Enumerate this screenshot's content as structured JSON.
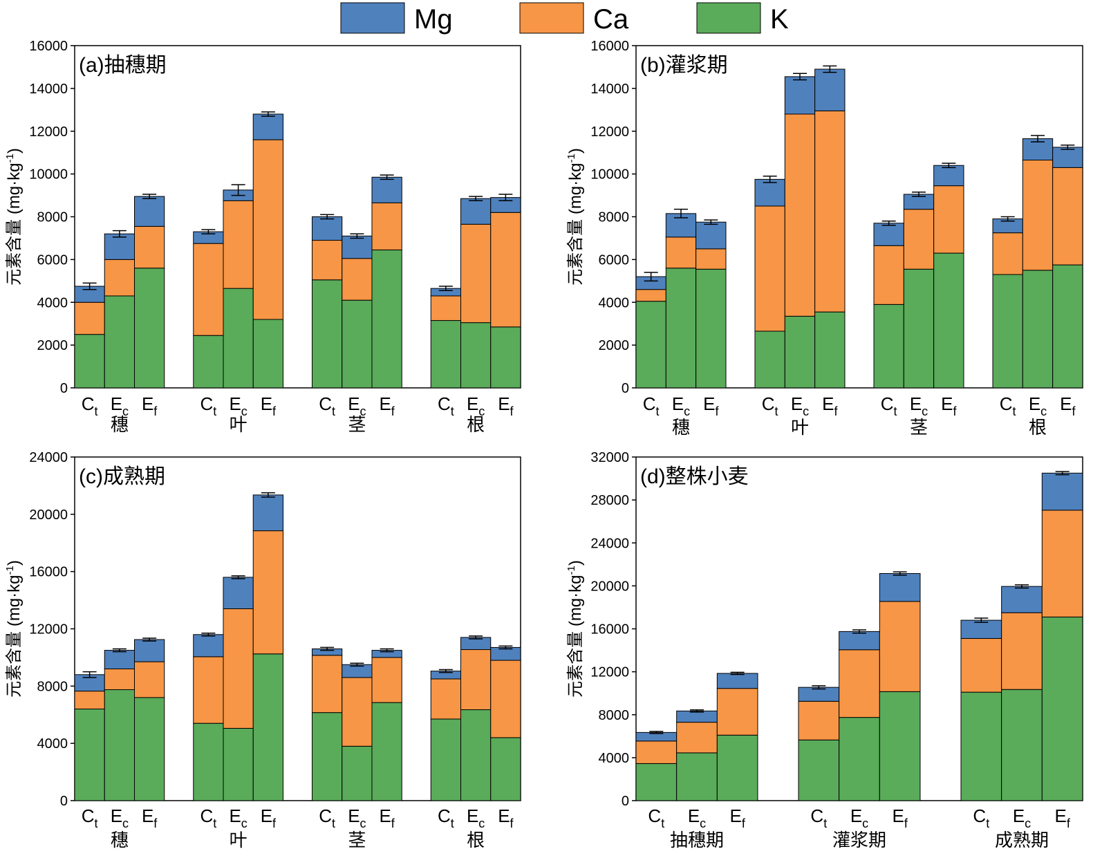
{
  "legend": [
    {
      "name": "Mg",
      "color": "#4f81bd"
    },
    {
      "name": "Ca",
      "color": "#f79646"
    },
    {
      "name": "K",
      "color": "#5aab5a"
    }
  ],
  "chart_data": [
    {
      "type": "bar",
      "stacked": true,
      "title": "(a)抽穗期",
      "ylabel": "元素含量 (mg·kg-1)",
      "ylim": [
        0,
        16000
      ],
      "yticks": [
        0,
        2000,
        4000,
        6000,
        8000,
        10000,
        12000,
        14000,
        16000
      ],
      "groups": [
        "穗",
        "叶",
        "茎",
        "根"
      ],
      "categories": [
        {
          "base": "C",
          "sub": "t"
        },
        {
          "base": "E",
          "sub": "c"
        },
        {
          "base": "E",
          "sub": "f"
        }
      ],
      "series": [
        {
          "name": "K",
          "values": [
            [
              2500,
              4300,
              5600
            ],
            [
              2450,
              4650,
              3200
            ],
            [
              5050,
              4100,
              6450
            ],
            [
              3150,
              3050,
              2850
            ]
          ]
        },
        {
          "name": "Ca",
          "values": [
            [
              1500,
              1700,
              1950
            ],
            [
              4300,
              4100,
              8400
            ],
            [
              1850,
              1950,
              2200
            ],
            [
              1150,
              4600,
              5350
            ]
          ]
        },
        {
          "name": "Mg",
          "values": [
            [
              750,
              1200,
              1400
            ],
            [
              550,
              500,
              1200
            ],
            [
              1100,
              1050,
              1200
            ],
            [
              350,
              1200,
              700
            ]
          ]
        }
      ],
      "error": [
        150,
        150,
        100,
        100,
        250,
        100,
        100,
        100,
        100,
        100,
        100,
        150
      ]
    },
    {
      "type": "bar",
      "stacked": true,
      "title": "(b)灌浆期",
      "ylabel": "元素含量 (mg·kg-1)",
      "ylim": [
        0,
        16000
      ],
      "yticks": [
        0,
        2000,
        4000,
        6000,
        8000,
        10000,
        12000,
        14000,
        16000
      ],
      "groups": [
        "穗",
        "叶",
        "茎",
        "根"
      ],
      "categories": [
        {
          "base": "C",
          "sub": "t"
        },
        {
          "base": "E",
          "sub": "c"
        },
        {
          "base": "E",
          "sub": "f"
        }
      ],
      "series": [
        {
          "name": "K",
          "values": [
            [
              4050,
              5600,
              5550
            ],
            [
              2650,
              3350,
              3550
            ],
            [
              3900,
              5550,
              6300
            ],
            [
              5300,
              5500,
              5750
            ]
          ]
        },
        {
          "name": "Ca",
          "values": [
            [
              550,
              1450,
              950
            ],
            [
              5850,
              9450,
              9400
            ],
            [
              2750,
              2800,
              3150
            ],
            [
              1950,
              5150,
              4550
            ]
          ]
        },
        {
          "name": "Mg",
          "values": [
            [
              600,
              1100,
              1250
            ],
            [
              1250,
              1750,
              1950
            ],
            [
              1050,
              700,
              950
            ],
            [
              650,
              1000,
              950
            ]
          ]
        }
      ],
      "error": [
        200,
        200,
        100,
        150,
        150,
        150,
        100,
        100,
        100,
        100,
        150,
        100
      ]
    },
    {
      "type": "bar",
      "stacked": true,
      "title": "(c)成熟期",
      "ylabel": "元素含量 (mg·kg-1)",
      "ylim": [
        0,
        24000
      ],
      "yticks": [
        0,
        4000,
        8000,
        12000,
        16000,
        20000,
        24000
      ],
      "groups": [
        "穗",
        "叶",
        "茎",
        "根"
      ],
      "categories": [
        {
          "base": "C",
          "sub": "t"
        },
        {
          "base": "E",
          "sub": "c"
        },
        {
          "base": "E",
          "sub": "f"
        }
      ],
      "series": [
        {
          "name": "K",
          "values": [
            [
              6400,
              7750,
              7200
            ],
            [
              5400,
              5050,
              10250
            ],
            [
              6150,
              3800,
              6850
            ],
            [
              5700,
              6350,
              4400
            ]
          ]
        },
        {
          "name": "Ca",
          "values": [
            [
              1250,
              1450,
              2500
            ],
            [
              4650,
              8350,
              8600
            ],
            [
              4000,
              4800,
              3150
            ],
            [
              2800,
              4200,
              5400
            ]
          ]
        },
        {
          "name": "Mg",
          "values": [
            [
              1150,
              1300,
              1550
            ],
            [
              1550,
              2200,
              2500
            ],
            [
              450,
              900,
              500
            ],
            [
              550,
              850,
              900
            ]
          ]
        }
      ],
      "error": [
        200,
        100,
        100,
        100,
        100,
        150,
        100,
        100,
        100,
        100,
        100,
        100
      ]
    },
    {
      "type": "bar",
      "stacked": true,
      "title": "(d)整株小麦",
      "ylabel": "元素含量 (mg·kg-1)",
      "ylim": [
        0,
        32000
      ],
      "yticks": [
        0,
        4000,
        8000,
        12000,
        16000,
        20000,
        24000,
        28000,
        32000
      ],
      "groups": [
        "抽穗期",
        "灌浆期",
        "成熟期"
      ],
      "categories": [
        {
          "base": "C",
          "sub": "t"
        },
        {
          "base": "E",
          "sub": "c"
        },
        {
          "base": "E",
          "sub": "f"
        }
      ],
      "series": [
        {
          "name": "K",
          "values": [
            [
              3450,
              4450,
              6100
            ],
            [
              5650,
              7750,
              10150
            ],
            [
              10100,
              10350,
              17100
            ]
          ]
        },
        {
          "name": "Ca",
          "values": [
            [
              2100,
              2850,
              4350
            ],
            [
              3600,
              6300,
              8400
            ],
            [
              5000,
              7150,
              9950
            ]
          ]
        },
        {
          "name": "Mg",
          "values": [
            [
              800,
              1050,
              1400
            ],
            [
              1300,
              1700,
              2600
            ],
            [
              1700,
              2450,
              3450
            ]
          ]
        }
      ],
      "error": [
        100,
        100,
        100,
        150,
        150,
        150,
        200,
        150,
        150
      ]
    }
  ]
}
